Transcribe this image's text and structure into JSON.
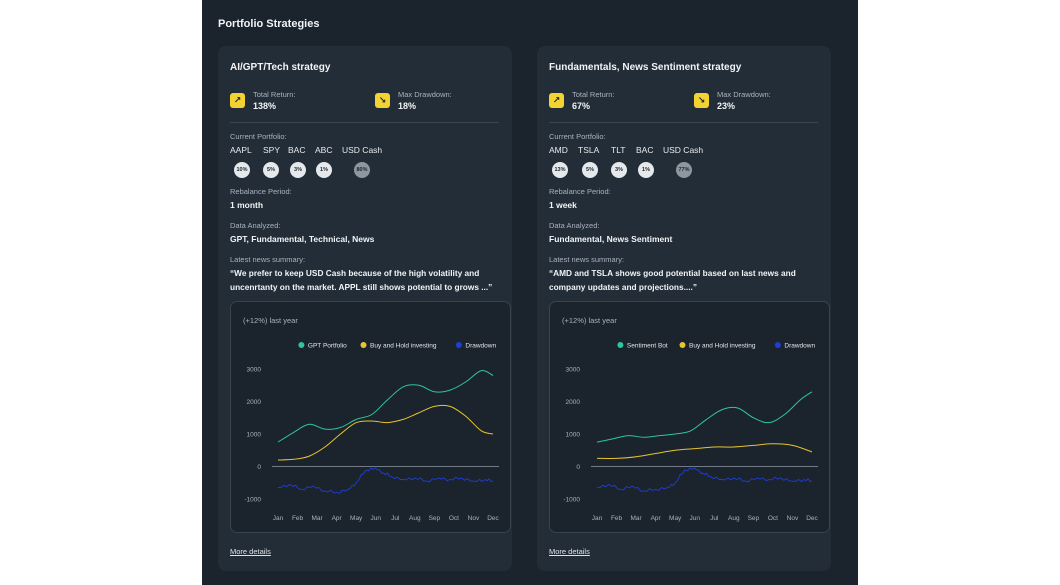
{
  "section_title": "Portfolio Strategies",
  "colors": {
    "primary": "#2ec79a",
    "buyhold": "#e8c42f",
    "drawdown": "#1f3ed6",
    "accent": "#f3d332"
  },
  "icons": {
    "return": "arrow-up-right-icon",
    "drawdown": "arrow-down-right-icon"
  },
  "cards": [
    {
      "title": "AI/GPT/Tech strategy",
      "total_return_label": "Total Return:",
      "total_return_value": "138%",
      "max_drawdown_label": "Max Drawdown:",
      "max_drawdown_value": "18%",
      "portfolio_label": "Current Portfolio:",
      "holdings": [
        {
          "ticker": "AAPL",
          "pct": "10%"
        },
        {
          "ticker": "SPY",
          "pct": "5%"
        },
        {
          "ticker": "BAC",
          "pct": "3%"
        },
        {
          "ticker": "ABC",
          "pct": "1%"
        },
        {
          "ticker": "USD Cash",
          "pct": "80%",
          "cash": true
        }
      ],
      "rebalance_label": "Rebalance Period:",
      "rebalance_value": "1 month",
      "data_label": "Data Analyzed:",
      "data_value": "GPT, Fundamental, Technical, News",
      "news_label": "Latest news summary:",
      "news_line1": "“We prefer to keep USD Cash because of the high volatility and",
      "news_line2": "uncenrtanty on the market. APPL still shows potential to grows ...”",
      "chart_subtitle": "(+12%) last year",
      "more_details": "More details",
      "chart_data": {
        "type": "line",
        "categories": [
          "Jan",
          "Feb",
          "Mar",
          "Apr",
          "May",
          "Jun",
          "Jul",
          "Aug",
          "Sep",
          "Oct",
          "Nov",
          "Dec"
        ],
        "yticks": [
          3000,
          2000,
          1000,
          0,
          -1000
        ],
        "ylim": [
          -1000,
          3000
        ],
        "legend_position": "top-right",
        "series": [
          {
            "name": "GPT Portfolio",
            "color": "#2ec79a",
            "x": [
              0,
              0.8,
              1.6,
              2.4,
              3.2,
              4,
              4.8,
              5.6,
              6.4,
              7.2,
              8,
              8.8,
              9.6,
              10.4,
              11
            ],
            "values": [
              750,
              1050,
              1300,
              1150,
              1200,
              1450,
              1600,
              2050,
              2450,
              2500,
              2300,
              2350,
              2600,
              2950,
              2800
            ]
          },
          {
            "name": "Buy and Hold investing",
            "color": "#e8c42f",
            "x": [
              0,
              0.8,
              1.6,
              2.4,
              3.2,
              4,
              4.8,
              5.6,
              6.4,
              7.2,
              8,
              8.8,
              9.6,
              10.4,
              11
            ],
            "values": [
              200,
              220,
              320,
              600,
              1000,
              1350,
              1400,
              1350,
              1450,
              1650,
              1850,
              1850,
              1550,
              1100,
              1000
            ]
          },
          {
            "name": "Drawdown",
            "color": "#1f3ed6",
            "x": [
              0,
              0.6,
              1.2,
              1.8,
              2.4,
              3,
              3.6,
              4,
              4.5,
              5,
              5.4,
              5.8,
              6.4,
              7,
              7.6,
              8.2,
              8.8,
              9.4,
              10,
              10.6,
              11
            ],
            "values": [
              -650,
              -550,
              -700,
              -600,
              -750,
              -800,
              -700,
              -500,
              -100,
              -50,
              -200,
              -300,
              -400,
              -350,
              -450,
              -350,
              -400,
              -350,
              -450,
              -400,
              -450
            ]
          }
        ]
      }
    },
    {
      "title": "Fundamentals, News Sentiment strategy",
      "total_return_label": "Total Return:",
      "total_return_value": "67%",
      "max_drawdown_label": "Max Drawdown:",
      "max_drawdown_value": "23%",
      "portfolio_label": "Current Portfolio:",
      "holdings": [
        {
          "ticker": "AMD",
          "pct": "13%"
        },
        {
          "ticker": "TSLA",
          "pct": "5%"
        },
        {
          "ticker": "TLT",
          "pct": "3%"
        },
        {
          "ticker": "BAC",
          "pct": "1%"
        },
        {
          "ticker": "USD Cash",
          "pct": "77%",
          "cash": true
        }
      ],
      "rebalance_label": "Rebalance Period:",
      "rebalance_value": "1 week",
      "data_label": "Data Analyzed:",
      "data_value": "Fundamental, News Sentiment",
      "news_label": "Latest news summary:",
      "news_line1": "“AMD and TSLA shows good potential based on last news and",
      "news_line2": "company updates and projections....”",
      "chart_subtitle": "(+12%) last year",
      "more_details": "More details",
      "chart_data": {
        "type": "line",
        "categories": [
          "Jan",
          "Feb",
          "Mar",
          "Apr",
          "May",
          "Jun",
          "Jul",
          "Aug",
          "Sep",
          "Oct",
          "Nov",
          "Dec"
        ],
        "yticks": [
          3000,
          2000,
          1000,
          0,
          -1000
        ],
        "ylim": [
          -1000,
          3000
        ],
        "legend_position": "top-right",
        "series": [
          {
            "name": "Sentiment Bot",
            "color": "#2ec79a",
            "x": [
              0,
              0.8,
              1.6,
              2.4,
              3.2,
              4,
              4.8,
              5.6,
              6.4,
              7.2,
              8,
              8.8,
              9.6,
              10.4,
              11
            ],
            "values": [
              750,
              850,
              950,
              900,
              950,
              1000,
              1100,
              1450,
              1750,
              1800,
              1500,
              1350,
              1600,
              2050,
              2300
            ]
          },
          {
            "name": "Buy and Hold investing",
            "color": "#e8c42f",
            "x": [
              0,
              1,
              2,
              3,
              4,
              5,
              6,
              7,
              8,
              9,
              10,
              11
            ],
            "values": [
              250,
              250,
              300,
              400,
              500,
              550,
              600,
              600,
              650,
              700,
              650,
              450
            ]
          },
          {
            "name": "Drawdown",
            "color": "#1f3ed6",
            "x": [
              0,
              0.6,
              1.2,
              1.8,
              2.4,
              3,
              3.6,
              4,
              4.5,
              5,
              5.4,
              5.8,
              6.4,
              7,
              7.6,
              8.2,
              8.8,
              9.4,
              10,
              10.6,
              11
            ],
            "values": [
              -650,
              -550,
              -700,
              -600,
              -750,
              -700,
              -650,
              -500,
              -100,
              -50,
              -200,
              -300,
              -400,
              -350,
              -450,
              -350,
              -400,
              -350,
              -450,
              -400,
              -450
            ]
          }
        ]
      }
    }
  ]
}
